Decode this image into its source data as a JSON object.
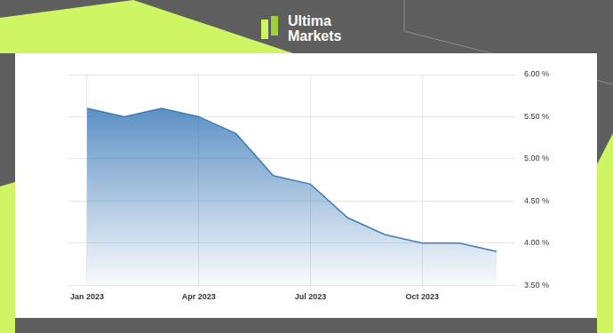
{
  "header": {
    "brand_line1": "Ultima",
    "brand_line2": "Markets"
  },
  "chart_data": {
    "type": "line",
    "categories": [
      "Jan 2023",
      null,
      null,
      "Apr 2023",
      null,
      null,
      "Jul 2023",
      null,
      null,
      "Oct 2023",
      null,
      null
    ],
    "values": [
      5.6,
      5.5,
      5.6,
      5.5,
      5.3,
      4.8,
      4.7,
      4.3,
      4.1,
      4.0,
      4.0,
      3.9
    ],
    "color": "#3f7cb9",
    "ylim": [
      3.5,
      6
    ],
    "yticks": [
      {
        "value": 3.5,
        "label": "3.50 %"
      },
      {
        "value": 4,
        "label": "4.00 %"
      },
      {
        "value": 4.5,
        "label": "4.50 %"
      },
      {
        "value": 5,
        "label": "5.00 %"
      },
      {
        "value": 5.5,
        "label": "5.50 %"
      },
      {
        "value": 6,
        "label": "6.00 %"
      }
    ],
    "grid": true
  }
}
